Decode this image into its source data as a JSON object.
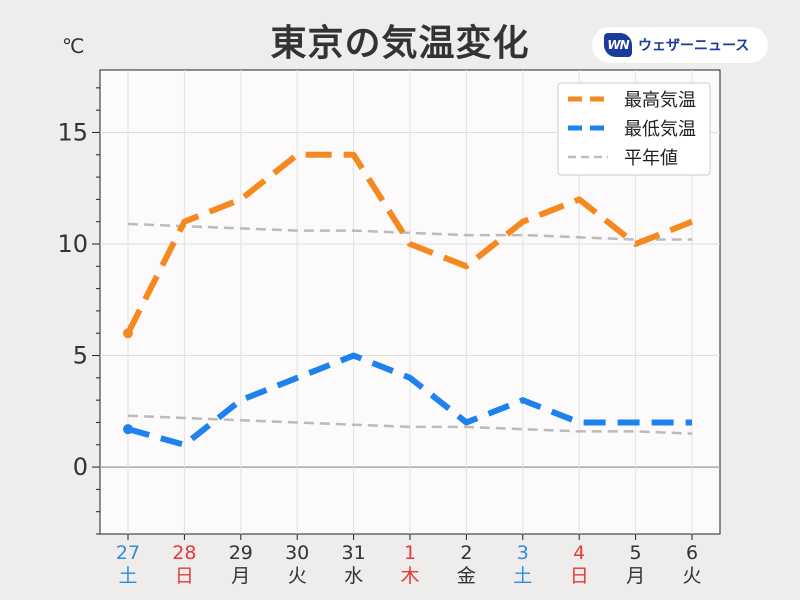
{
  "header": {
    "title": "東京の気温変化",
    "unit": "℃",
    "brand_name": "ウェザーニュース",
    "brand_logo_text": "WN"
  },
  "colors": {
    "high": "#f5891f",
    "low": "#1e82ee",
    "normal": "#bbbbbb",
    "weekday": "#333333",
    "saturday": "#2f8ee0",
    "holiday": "#e23b3b"
  },
  "chart_data": {
    "type": "line",
    "title": "東京の気温変化",
    "ylabel": "℃",
    "ylim": [
      -3,
      17.8
    ],
    "yticks": [
      0,
      5,
      10,
      15
    ],
    "grid": true,
    "legend_position": "top-right",
    "x": [
      {
        "day": "27",
        "weekday": "土",
        "kind": "saturday"
      },
      {
        "day": "28",
        "weekday": "日",
        "kind": "holiday"
      },
      {
        "day": "29",
        "weekday": "月",
        "kind": "weekday"
      },
      {
        "day": "30",
        "weekday": "火",
        "kind": "weekday"
      },
      {
        "day": "31",
        "weekday": "水",
        "kind": "weekday"
      },
      {
        "day": "1",
        "weekday": "木",
        "kind": "holiday"
      },
      {
        "day": "2",
        "weekday": "金",
        "kind": "weekday"
      },
      {
        "day": "3",
        "weekday": "土",
        "kind": "saturday"
      },
      {
        "day": "4",
        "weekday": "日",
        "kind": "holiday"
      },
      {
        "day": "5",
        "weekday": "月",
        "kind": "weekday"
      },
      {
        "day": "6",
        "weekday": "火",
        "kind": "weekday"
      }
    ],
    "series": [
      {
        "name": "最高気温",
        "values": [
          6,
          11,
          12,
          14,
          14,
          10,
          9,
          11,
          12,
          10,
          11
        ],
        "color": "#f5891f"
      },
      {
        "name": "最低気温",
        "values": [
          1.7,
          1,
          3,
          4,
          5,
          4,
          2,
          3,
          2,
          2,
          2
        ],
        "color": "#1e82ee"
      }
    ],
    "normals": {
      "name": "平年値",
      "high": [
        10.9,
        10.8,
        10.7,
        10.6,
        10.6,
        10.5,
        10.4,
        10.4,
        10.3,
        10.2,
        10.2
      ],
      "low": [
        2.3,
        2.2,
        2.1,
        2.0,
        1.9,
        1.8,
        1.8,
        1.7,
        1.6,
        1.6,
        1.5
      ]
    }
  }
}
